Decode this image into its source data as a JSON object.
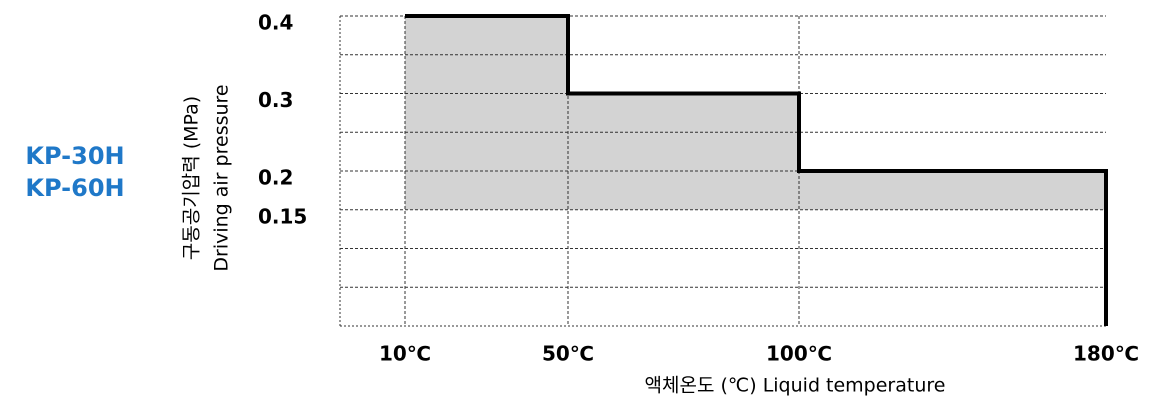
{
  "chart_data": {
    "type": "step",
    "models": [
      "KP-30H",
      "KP-60H"
    ],
    "ylabel": [
      "구동공기압력 (MPa)",
      "Driving air pressure"
    ],
    "xlabel": "액체온도 (℃) Liquid temperature",
    "categories": [
      "10℃",
      "50℃",
      "100℃",
      "180℃"
    ],
    "values": [
      0.4,
      0.3,
      0.2,
      0
    ],
    "lower_limit": 0.15,
    "ylim": [
      0,
      0.4
    ],
    "yticks": [
      0.4,
      0.3,
      0.2,
      0.15
    ],
    "grid_lines": [
      0.05,
      0.1,
      0.15,
      0.2,
      0.25,
      0.3,
      0.35,
      0.4
    ],
    "color": "#000000",
    "fill": "#d3d3d3",
    "model_color": "#1f78c8"
  }
}
